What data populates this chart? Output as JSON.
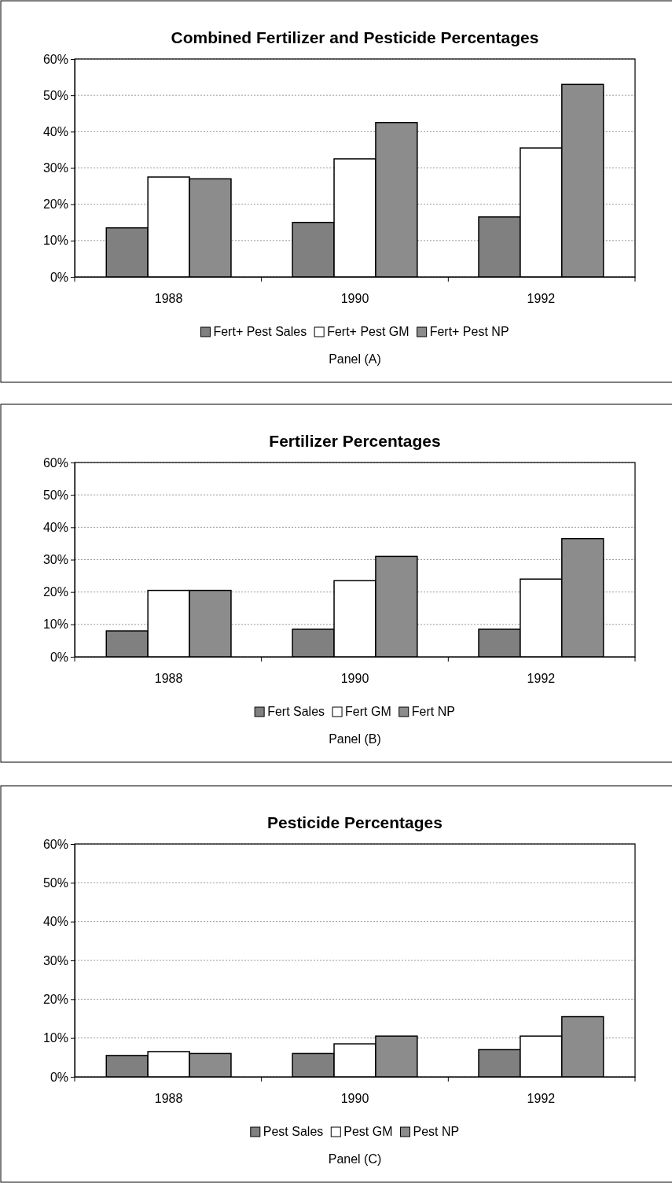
{
  "chart_data": [
    {
      "type": "bar",
      "title": "Combined Fertilizer and Pesticide Percentages",
      "categories": [
        "1988",
        "1990",
        "1992"
      ],
      "series": [
        {
          "name": "Fert+ Pest Sales",
          "color": "#808080",
          "values": [
            13.5,
            15,
            16.5
          ]
        },
        {
          "name": "Fert+ Pest GM",
          "color": "#ffffff",
          "values": [
            27.5,
            32.5,
            35.5
          ]
        },
        {
          "name": "Fert+ Pest NP",
          "color": "#8c8c8c",
          "values": [
            27,
            42.5,
            53
          ]
        }
      ],
      "ylim": [
        0,
        60
      ],
      "yticks": [
        {
          "value": 0,
          "label": "0%"
        },
        {
          "value": 10,
          "label": "10%"
        },
        {
          "value": 20,
          "label": "20%"
        },
        {
          "value": 30,
          "label": "30%"
        },
        {
          "value": 40,
          "label": "40%"
        },
        {
          "value": 50,
          "label": "50%"
        },
        {
          "value": 60,
          "label": "60%"
        }
      ],
      "grid": "y",
      "legend": "bottom",
      "annotations": [
        "Panel (A)"
      ]
    },
    {
      "type": "bar",
      "title": "Fertilizer Percentages",
      "categories": [
        "1988",
        "1990",
        "1992"
      ],
      "series": [
        {
          "name": "Fert Sales",
          "color": "#808080",
          "values": [
            8,
            8.5,
            8.5
          ]
        },
        {
          "name": "Fert GM",
          "color": "#ffffff",
          "values": [
            20.5,
            23.5,
            24
          ]
        },
        {
          "name": "Fert NP",
          "color": "#8c8c8c",
          "values": [
            20.5,
            31,
            36.5
          ]
        }
      ],
      "ylim": [
        0,
        60
      ],
      "yticks": [
        {
          "value": 0,
          "label": "0%"
        },
        {
          "value": 10,
          "label": "10%"
        },
        {
          "value": 20,
          "label": "20%"
        },
        {
          "value": 30,
          "label": "30%"
        },
        {
          "value": 40,
          "label": "40%"
        },
        {
          "value": 50,
          "label": "50%"
        },
        {
          "value": 60,
          "label": "60%"
        }
      ],
      "grid": "y",
      "legend": "bottom",
      "annotations": [
        "Panel (B)"
      ]
    },
    {
      "type": "bar",
      "title": "Pesticide Percentages",
      "categories": [
        "1988",
        "1990",
        "1992"
      ],
      "series": [
        {
          "name": "Pest Sales",
          "color": "#808080",
          "values": [
            5.5,
            6,
            7
          ]
        },
        {
          "name": "Pest GM",
          "color": "#ffffff",
          "values": [
            6.5,
            8.5,
            10.5
          ]
        },
        {
          "name": "Pest NP",
          "color": "#8c8c8c",
          "values": [
            6,
            10.5,
            15.5
          ]
        }
      ],
      "ylim": [
        0,
        60
      ],
      "yticks": [
        {
          "value": 0,
          "label": "0%"
        },
        {
          "value": 10,
          "label": "10%"
        },
        {
          "value": 20,
          "label": "20%"
        },
        {
          "value": 30,
          "label": "30%"
        },
        {
          "value": 40,
          "label": "40%"
        },
        {
          "value": 50,
          "label": "50%"
        },
        {
          "value": 60,
          "label": "60%"
        }
      ],
      "grid": "y",
      "legend": "bottom",
      "annotations": [
        "Panel (C)"
      ]
    }
  ]
}
